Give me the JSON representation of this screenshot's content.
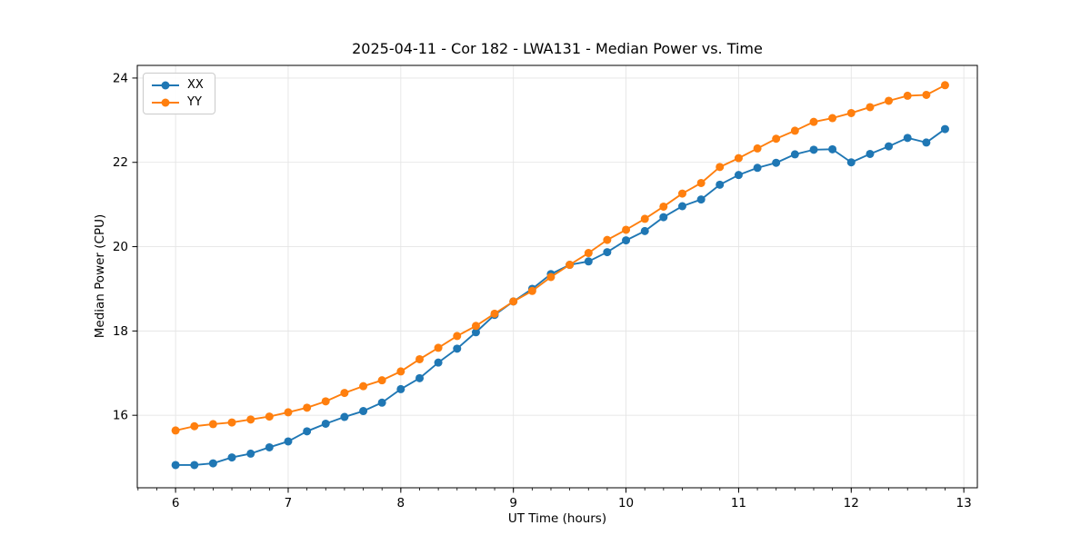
{
  "chart_data": {
    "type": "line",
    "title": "2025-04-11 - Cor 182 - LWA131 - Median Power vs. Time",
    "xlabel": "UT Time (hours)",
    "ylabel": "Median Power (CPU)",
    "x": [
      6.0,
      6.167,
      6.333,
      6.5,
      6.667,
      6.833,
      7.0,
      7.167,
      7.333,
      7.5,
      7.667,
      7.833,
      8.0,
      8.167,
      8.333,
      8.5,
      8.667,
      8.833,
      9.0,
      9.167,
      9.333,
      9.5,
      9.667,
      9.833,
      10.0,
      10.167,
      10.333,
      10.5,
      10.667,
      10.833,
      11.0,
      11.167,
      11.333,
      11.5,
      11.667,
      11.833,
      12.0,
      12.167,
      12.333,
      12.5,
      12.667,
      12.833
    ],
    "series": [
      {
        "name": "XX",
        "color": "#1f77b4",
        "values": [
          14.82,
          14.82,
          14.86,
          15.0,
          15.09,
          15.24,
          15.38,
          15.62,
          15.8,
          15.96,
          16.1,
          16.3,
          16.62,
          16.88,
          17.25,
          17.58,
          17.97,
          18.38,
          18.7,
          19.0,
          19.35,
          19.57,
          19.65,
          19.87,
          20.15,
          20.37,
          20.7,
          20.96,
          21.12,
          21.47,
          21.7,
          21.87,
          21.99,
          22.19,
          22.3,
          22.31,
          22.0,
          22.2,
          22.38,
          22.58,
          22.47,
          22.79
        ]
      },
      {
        "name": "YY",
        "color": "#ff7f0e",
        "values": [
          15.64,
          15.74,
          15.79,
          15.83,
          15.9,
          15.97,
          16.07,
          16.18,
          16.33,
          16.53,
          16.69,
          16.83,
          17.04,
          17.33,
          17.6,
          17.88,
          18.12,
          18.41,
          18.7,
          18.95,
          19.28,
          19.57,
          19.85,
          20.16,
          20.4,
          20.66,
          20.95,
          21.26,
          21.51,
          21.89,
          22.1,
          22.33,
          22.56,
          22.75,
          22.96,
          23.05,
          23.17,
          23.31,
          23.46,
          23.58,
          23.6,
          23.83
        ]
      }
    ],
    "xlim": [
      5.66,
      13.12
    ],
    "ylim": [
      14.28,
      24.3
    ],
    "xticks": [
      6,
      7,
      8,
      9,
      10,
      11,
      12,
      13
    ],
    "yticks": [
      16,
      18,
      20,
      22,
      24
    ],
    "minor_x_step": 0.166667,
    "grid": true,
    "legend_position": "upper left",
    "marker": "circle"
  }
}
